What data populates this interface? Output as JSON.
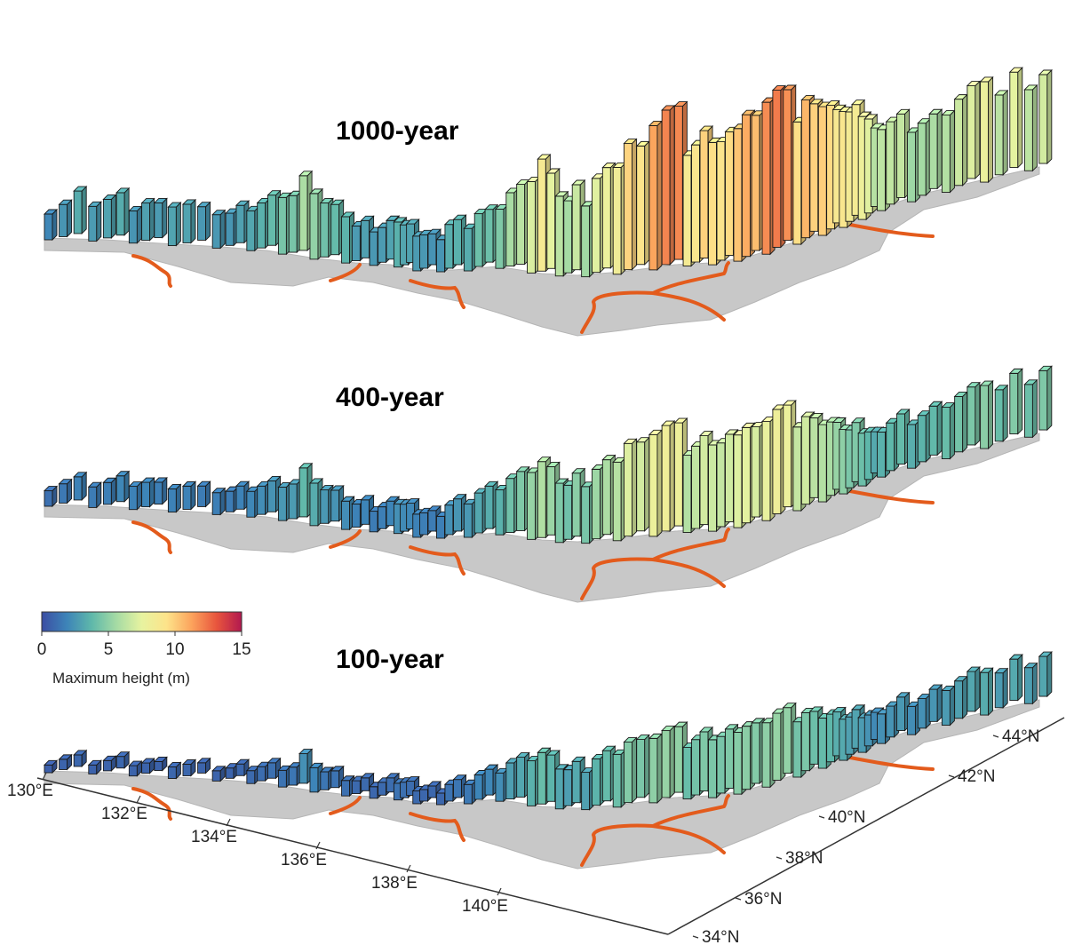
{
  "chart_data": {
    "type": "bar3d",
    "panels": [
      {
        "title": "1000-year",
        "bar_heights_m": [
          2.0,
          2.5,
          3.3,
          2.7,
          3.0,
          3.3,
          2.5,
          2.9,
          2.7,
          3.0,
          3.0,
          2.6,
          2.6,
          2.5,
          2.9,
          3.1,
          3.5,
          3.9,
          4.4,
          4.4,
          5.8,
          5.1,
          4.2,
          3.9,
          3.6,
          2.7,
          2.9,
          2.6,
          2.7,
          3.0,
          3.5,
          3.1,
          3.0,
          2.7,
          2.6,
          2.4,
          2.5,
          3.4,
          3.5,
          3.3,
          4.1,
          4.1,
          4.6,
          5.7,
          6.2,
          7.1,
          8.7,
          7.4,
          6.2,
          5.6,
          6.6,
          5.5,
          7.3,
          7.8,
          8.3,
          9.8,
          9.2,
          11.2,
          12.0,
          11.9,
          8.6,
          9.1,
          9.9,
          9.5,
          9.2,
          9.6,
          10.3,
          11.0,
          10.5,
          11.8,
          12.2,
          11.7,
          9.5,
          10.7,
          9.9,
          10.0,
          9.6,
          8.8,
          9.0,
          8.5,
          8.6,
          8.0,
          7.3,
          6.1,
          6.3,
          6.4,
          6.5,
          5.4,
          5.6,
          5.8,
          6.0,
          6.7,
          7.2,
          7.8,
          6.2,
          7.4,
          6.3,
          6.9
        ],
        "color_mode": "by_value"
      },
      {
        "title": "400-year",
        "bar_heights_m": [
          1.2,
          1.5,
          1.8,
          1.6,
          1.7,
          2.0,
          1.8,
          1.9,
          1.7,
          1.8,
          1.8,
          1.6,
          1.7,
          1.6,
          1.8,
          2.0,
          2.2,
          2.4,
          2.6,
          2.7,
          3.8,
          3.3,
          2.6,
          2.4,
          2.2,
          1.8,
          1.9,
          1.6,
          1.7,
          1.9,
          2.3,
          2.1,
          2.0,
          1.8,
          1.7,
          1.6,
          1.7,
          2.3,
          2.5,
          2.6,
          3.1,
          3.3,
          3.5,
          4.2,
          4.6,
          5.2,
          5.9,
          5.3,
          4.6,
          4.2,
          4.9,
          4.4,
          5.4,
          5.8,
          6.1,
          7.2,
          6.9,
          7.9,
          8.2,
          8.0,
          6.0,
          6.4,
          6.9,
          6.7,
          6.5,
          6.8,
          7.2,
          7.4,
          7.0,
          7.7,
          8.1,
          7.9,
          6.5,
          6.8,
          6.2,
          6.0,
          5.7,
          5.2,
          5.0,
          4.5,
          4.6,
          4.1,
          3.7,
          3.2,
          3.5,
          3.7,
          3.9,
          3.4,
          3.6,
          3.8,
          4.0,
          4.3,
          4.5,
          4.9,
          4.0,
          4.7,
          4.1,
          4.6
        ],
        "color_mode": "by_value"
      },
      {
        "title": "100-year",
        "bar_heights_m": [
          0.6,
          0.8,
          0.9,
          0.7,
          0.8,
          0.9,
          0.8,
          0.8,
          0.7,
          0.9,
          0.9,
          0.8,
          0.8,
          0.8,
          0.9,
          1.0,
          1.1,
          1.2,
          1.3,
          1.4,
          2.3,
          1.9,
          1.4,
          1.3,
          1.2,
          1.0,
          1.0,
          0.9,
          1.0,
          1.1,
          1.3,
          1.2,
          1.1,
          1.0,
          0.9,
          0.9,
          0.9,
          1.3,
          1.4,
          1.5,
          1.9,
          2.0,
          2.2,
          2.8,
          3.1,
          3.5,
          4.0,
          3.6,
          3.1,
          2.8,
          3.2,
          2.9,
          3.6,
          3.9,
          4.1,
          4.7,
          4.5,
          5.0,
          5.2,
          5.1,
          4.0,
          4.3,
          4.6,
          4.5,
          4.4,
          4.6,
          4.8,
          4.9,
          4.7,
          5.0,
          5.2,
          5.1,
          4.3,
          4.5,
          4.1,
          3.9,
          3.7,
          3.4,
          3.2,
          2.9,
          3.0,
          2.7,
          2.4,
          2.1,
          2.3,
          2.4,
          2.6,
          2.2,
          2.3,
          2.5,
          2.7,
          2.9,
          3.1,
          3.3,
          2.7,
          3.2,
          2.8,
          3.1
        ],
        "color_mode": "by_value"
      }
    ],
    "colorbar": {
      "label": "Maximum height (m)",
      "range": [
        0,
        15
      ],
      "ticks": [
        "0",
        "5",
        "10",
        "15"
      ],
      "colormap": [
        "#3b4da3",
        "#3d84b8",
        "#5fb8aa",
        "#a6dba4",
        "#e7f3a0",
        "#fde38a",
        "#fca35c",
        "#e8553d",
        "#b2184f"
      ]
    },
    "x_axis": {
      "ticks": [
        "130°E",
        "132°E",
        "134°E",
        "136°E",
        "138°E",
        "140°E"
      ]
    },
    "y_axis": {
      "ticks": [
        "34°N",
        "36°N",
        "38°N",
        "40°N",
        "42°N",
        "44°N"
      ]
    },
    "colors": {
      "land": "#c8c8c8",
      "fault_lines": "#e35b1c",
      "bar_outline": "#1a1a1a"
    }
  }
}
